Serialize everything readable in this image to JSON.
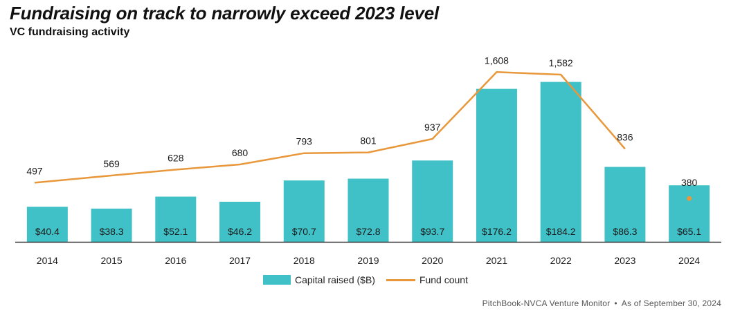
{
  "title": "Fundraising on track to narrowly exceed 2023 level",
  "subtitle": "VC fundraising activity",
  "source": {
    "name": "PitchBook-NVCA Venture Monitor",
    "separator": "•",
    "date": "As of September 30, 2024"
  },
  "colors": {
    "bar": "#40c1c7",
    "line": "#e8973a",
    "axis": "#333333"
  },
  "legend": {
    "bar_label": "Capital raised ($B)",
    "line_label": "Fund count"
  },
  "chart_data": {
    "type": "bar+line",
    "categories": [
      "2014",
      "2015",
      "2016",
      "2017",
      "2018",
      "2019",
      "2020",
      "2021",
      "2022",
      "2023",
      "2024"
    ],
    "series": [
      {
        "name": "Capital raised ($B)",
        "type": "bar",
        "axis": "left",
        "values": [
          40.4,
          38.3,
          52.1,
          46.2,
          70.7,
          72.8,
          93.7,
          176.2,
          184.2,
          86.3,
          65.1
        ],
        "labels": [
          "$40.4",
          "$38.3",
          "$52.1",
          "$46.2",
          "$70.7",
          "$72.8",
          "$93.7",
          "$176.2",
          "$184.2",
          "$86.3",
          "$65.1"
        ]
      },
      {
        "name": "Fund count",
        "type": "line",
        "axis": "right",
        "values": [
          497,
          569,
          628,
          680,
          793,
          801,
          937,
          1608,
          1582,
          836,
          380
        ],
        "labels": [
          "497",
          "569",
          "628",
          "680",
          "793",
          "801",
          "937",
          "1,608",
          "1,582",
          "836",
          "380"
        ],
        "point_only_last": true
      }
    ],
    "ylim_left": [
      0,
      195
    ],
    "ylim_right": [
      0,
      1700
    ]
  }
}
